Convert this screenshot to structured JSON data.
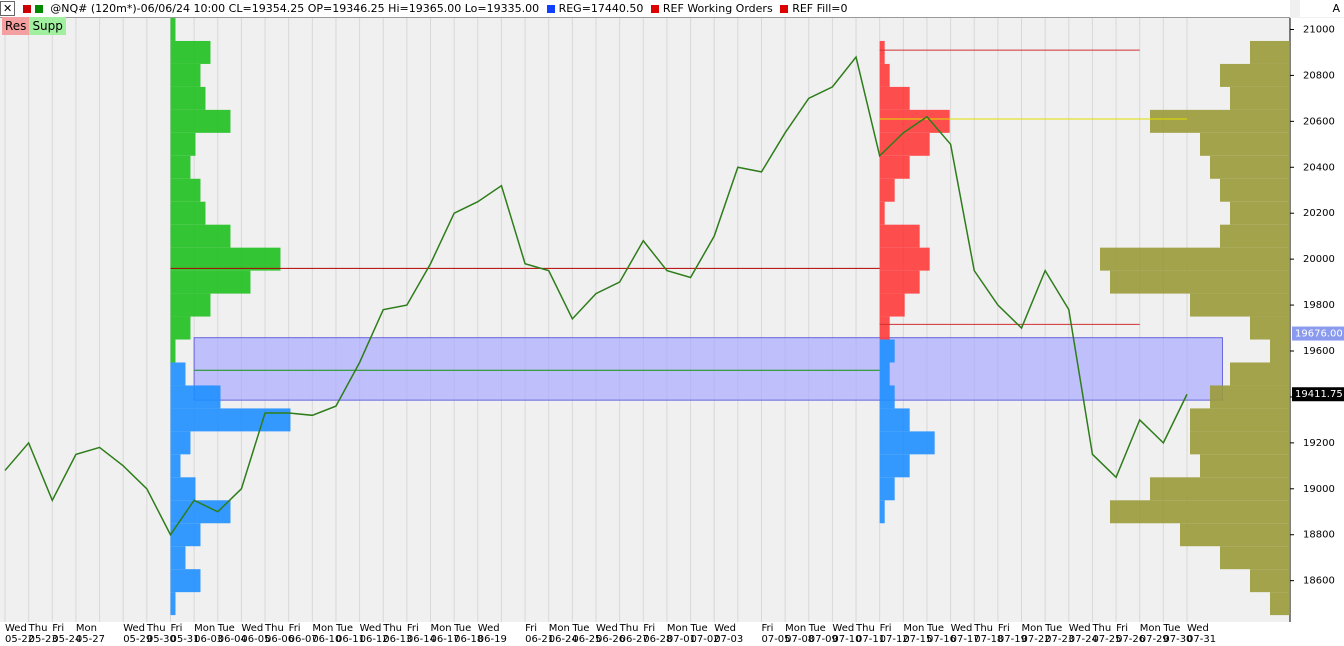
{
  "header": {
    "symbol": "@NQ# (120m*)-06/06/24 10:00 CL=19354.25 OP=19346.25 Hi=19365.00 Lo=19335.00",
    "reg": "REG=17440.50",
    "working": "REF Working Orders",
    "fill": "REF Fill=0",
    "corner": "A"
  },
  "buttons": [
    "Res",
    "Supp"
  ],
  "chart_data": {
    "type": "line",
    "categories": [
      "05-22",
      "05-23",
      "05-24",
      "05-27",
      null,
      "05-29",
      "05-30",
      "05-31",
      "06-03",
      "06-04",
      "06-05",
      "06-06",
      "06-07",
      "06-10",
      "06-11",
      "06-12",
      "06-13",
      "06-14",
      "06-17",
      "06-18",
      "06-19",
      null,
      "06-21",
      "06-24",
      "06-25",
      "06-26",
      "06-27",
      "06-28",
      "07-01",
      "07-02",
      "07-03",
      null,
      "07-05",
      "07-08",
      "07-09",
      "07-10",
      "07-11",
      "07-12",
      "07-15",
      "07-16",
      "07-17",
      "07-18",
      "07-19",
      "07-22",
      "07-23",
      "07-24",
      "07-25",
      "07-26",
      "07-29",
      "07-30",
      "07-31"
    ],
    "weekdays": [
      "Wed",
      "Thu",
      "Fri",
      "Mon",
      null,
      "Wed",
      "Thu",
      "Fri",
      "Mon",
      "Tue",
      "Wed",
      "Thu",
      "Fri",
      "Mon",
      "Tue",
      "Wed",
      "Thu",
      "Fri",
      "Mon",
      "Tue",
      "Wed",
      null,
      "Fri",
      "Mon",
      "Tue",
      "Wed",
      "Thu",
      "Fri",
      "Mon",
      "Tue",
      "Wed",
      null,
      "Fri",
      "Mon",
      "Tue",
      "Wed",
      "Thu",
      "Fri",
      "Mon",
      "Tue",
      "Wed",
      "Thu",
      "Fri",
      "Mon",
      "Tue",
      "Wed",
      "Thu",
      "Fri",
      "Mon",
      "Tue",
      "Wed"
    ],
    "series": [
      {
        "name": "@NQ#",
        "color": "#2e7d1a",
        "values": [
          19080,
          19200,
          18950,
          19150,
          19180,
          19100,
          19000,
          18800,
          18950,
          18900,
          19000,
          19330,
          19330,
          19320,
          19360,
          19550,
          19780,
          19800,
          19980,
          20200,
          20250,
          20320,
          19980,
          19950,
          19740,
          19850,
          19900,
          20080,
          19950,
          19920,
          20100,
          20400,
          20380,
          20550,
          20700,
          20750,
          20880,
          20450,
          20550,
          20620,
          20500,
          19950,
          19800,
          19700,
          19950,
          19780,
          19150,
          19050,
          19300,
          19200,
          19411.75
        ]
      }
    ],
    "ylim": [
      18420,
      21050
    ],
    "yticks": [
      18600,
      18800,
      19000,
      19200,
      19400,
      19600,
      19800,
      20000,
      20200,
      20400,
      20600,
      20800,
      21000
    ],
    "grid": true,
    "levels": [
      {
        "value": 19960,
        "color": "#b00000",
        "from": "05-31",
        "to": "07-12"
      },
      {
        "value": 19516,
        "color": "#109010",
        "from": "06-03",
        "to": "07-12"
      },
      {
        "value": 20910,
        "color": "#d03030",
        "from": "07-12",
        "to": "07-29"
      },
      {
        "value": 19716,
        "color": "#d03030",
        "from": "07-12",
        "to": "07-29"
      },
      {
        "value": 20610,
        "color": "#e0e000",
        "from": "07-12",
        "to": "07-31"
      }
    ],
    "zone": {
      "high": 19658,
      "low": 19386,
      "color": "#aaaaff",
      "from": "06-03",
      "to": "07-31"
    },
    "price_labels": [
      {
        "value": 19676,
        "label": "19676.00",
        "color": "#8a9aee"
      },
      {
        "value": 19411.75,
        "color": "#000000"
      }
    ],
    "volume_profiles": [
      {
        "anchor": "05-31",
        "side": "right",
        "split": 19560,
        "color_above": "#1fc01f",
        "color_below": "#1e8fff",
        "prices": [
          21000,
          20900,
          20800,
          20700,
          20600,
          20500,
          20400,
          20300,
          20200,
          20100,
          20000,
          19900,
          19800,
          19700,
          19600,
          19500,
          19400,
          19300,
          19200,
          19100,
          19000,
          18900,
          18800,
          18700,
          18600,
          18500
        ],
        "volumes": [
          5,
          40,
          30,
          35,
          60,
          25,
          20,
          30,
          35,
          60,
          110,
          80,
          40,
          20,
          5,
          15,
          50,
          120,
          20,
          10,
          25,
          60,
          30,
          15,
          30,
          5
        ]
      },
      {
        "anchor": "07-12",
        "side": "right",
        "split": 19660,
        "color_above": "#ff3b3b",
        "color_below": "#1e8fff",
        "prices": [
          20900,
          20800,
          20700,
          20600,
          20500,
          20400,
          20300,
          20200,
          20100,
          20000,
          19900,
          19800,
          19700,
          19600,
          19500,
          19400,
          19300,
          19200,
          19100,
          19000,
          18900
        ],
        "volumes": [
          5,
          10,
          30,
          70,
          50,
          30,
          15,
          5,
          40,
          50,
          40,
          25,
          10,
          15,
          10,
          15,
          30,
          55,
          30,
          15,
          5
        ]
      },
      {
        "anchor": "end",
        "side": "left",
        "split": 0,
        "color_above": "#9a9a3a",
        "color_below": "#9a9a3a",
        "prices": [
          20900,
          20800,
          20700,
          20600,
          20500,
          20400,
          20300,
          20200,
          20100,
          20000,
          19900,
          19800,
          19700,
          19600,
          19500,
          19400,
          19300,
          19200,
          19100,
          19000,
          18900,
          18800,
          18700,
          18600,
          18500
        ],
        "volumes": [
          40,
          70,
          60,
          140,
          90,
          80,
          70,
          60,
          70,
          190,
          180,
          100,
          40,
          20,
          60,
          80,
          100,
          100,
          90,
          140,
          180,
          110,
          70,
          40,
          20
        ]
      }
    ]
  }
}
